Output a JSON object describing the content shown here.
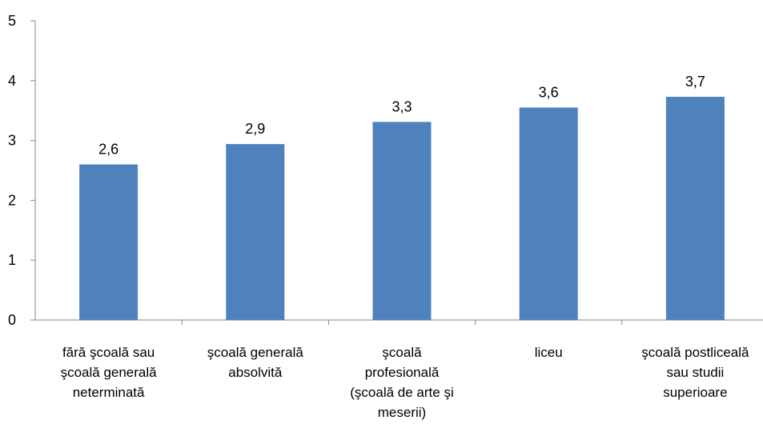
{
  "chart_data": {
    "type": "bar",
    "categories": [
      "fără şcoală sau\nşcoală generală\nneterminată",
      "şcoală generală\nabsolvită",
      "şcoală\nprofesională\n(şcoală de arte şi\nmeserii)",
      "liceu",
      "şcoală postliceală\nsau studii\nsuperioare"
    ],
    "values": [
      2.6,
      2.94,
      3.31,
      3.55,
      3.73
    ],
    "data_labels": [
      "2,6",
      "2,9",
      "3,3",
      "3,6",
      "3,7"
    ],
    "y_ticks": [
      "0",
      "1",
      "2",
      "3",
      "4",
      "5"
    ],
    "ylim": [
      0,
      5
    ],
    "grid": false,
    "legend": "none",
    "bar_color": "#4f81bd"
  }
}
